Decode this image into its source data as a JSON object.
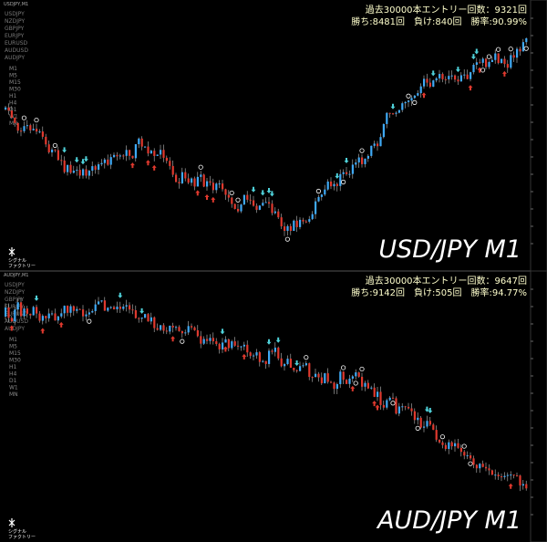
{
  "panels": [
    {
      "header": "USDJPY,M1",
      "symbols": [
        "USDJPY",
        "NZDJPY",
        "GBPJPY",
        "EURJPY",
        "EURUSD",
        "AUDUSD",
        "AUDJPY"
      ],
      "timeframes": [
        "M1",
        "M5",
        "M15",
        "M30",
        "H1",
        "H4",
        "D1",
        "W1",
        "MN"
      ],
      "stats_line1": "過去30000本エントリー回数：9321回",
      "stats_line2": "勝ち:8481回　負け:840回　勝率:90.99%",
      "label": "USD/JPY M1",
      "logo": [
        "シグナル",
        "ファクトリー"
      ]
    },
    {
      "header": "AUDJPY,M1",
      "symbols": [
        "USDJPY",
        "NZDJPY",
        "GBPJPY",
        "EURJPY",
        "EURUSD",
        "AUDUSD",
        "AUDJPY"
      ],
      "timeframes": [
        "M1",
        "M5",
        "M15",
        "M30",
        "H1",
        "H4",
        "D1",
        "W1",
        "MN"
      ],
      "stats_line1": "過去30000本エントリー回数：9647回",
      "stats_line2": "勝ち:9142回　負け:505回　勝率:94.77%",
      "label": "AUD/JPY M1",
      "logo": [
        "シグナル",
        "ファクトリー"
      ]
    }
  ]
}
